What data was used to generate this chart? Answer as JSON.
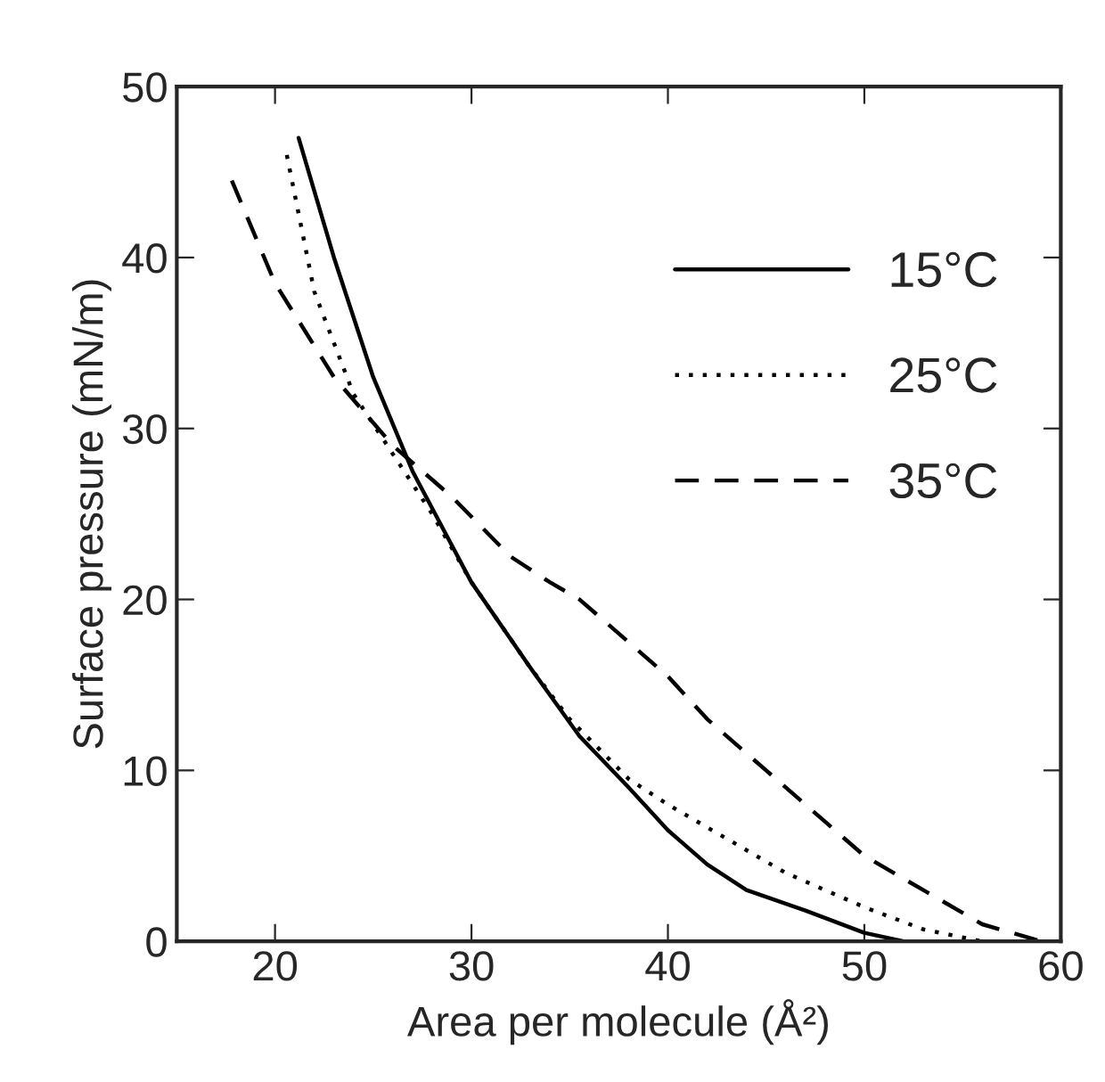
{
  "chart_data": {
    "type": "line",
    "xlabel": "Area per molecule (Å²)",
    "ylabel": "Surface pressure (mN/m)",
    "xlim": [
      15,
      60
    ],
    "ylim": [
      0,
      50
    ],
    "xticks": [
      20,
      30,
      40,
      50,
      60
    ],
    "yticks": [
      0,
      10,
      20,
      30,
      40,
      50
    ],
    "grid": false,
    "legend": "top right",
    "marker": "none",
    "series": [
      {
        "name": "15°C",
        "color": "#000000",
        "line_style": "solid",
        "x": [
          21.2,
          23,
          25,
          27,
          30,
          33,
          35.5,
          38,
          40,
          42,
          44,
          47,
          50,
          52
        ],
        "values": [
          47,
          40,
          33,
          27.5,
          21,
          16,
          12,
          9,
          6.5,
          4.5,
          3,
          1.8,
          0.5,
          0
        ]
      },
      {
        "name": "25°C",
        "color": "#000000",
        "line_style": "dotted",
        "x": [
          20.6,
          22,
          24,
          26,
          28,
          30,
          33,
          35,
          38,
          40,
          43,
          46,
          50,
          53,
          56
        ],
        "values": [
          46,
          38,
          32,
          28.5,
          25,
          21,
          16,
          13,
          9.5,
          8,
          6,
          4,
          2,
          0.7,
          0
        ]
      },
      {
        "name": "35°C",
        "color": "#000000",
        "line_style": "dashed",
        "x": [
          17.8,
          20,
          23,
          26,
          29,
          32,
          34,
          35.5,
          38,
          40,
          42,
          45,
          48,
          50,
          53,
          56,
          59
        ],
        "values": [
          44.5,
          38.5,
          33,
          29,
          26,
          22.5,
          21,
          20,
          17.5,
          15.5,
          13,
          10,
          7,
          5,
          3,
          1,
          0
        ]
      }
    ]
  }
}
